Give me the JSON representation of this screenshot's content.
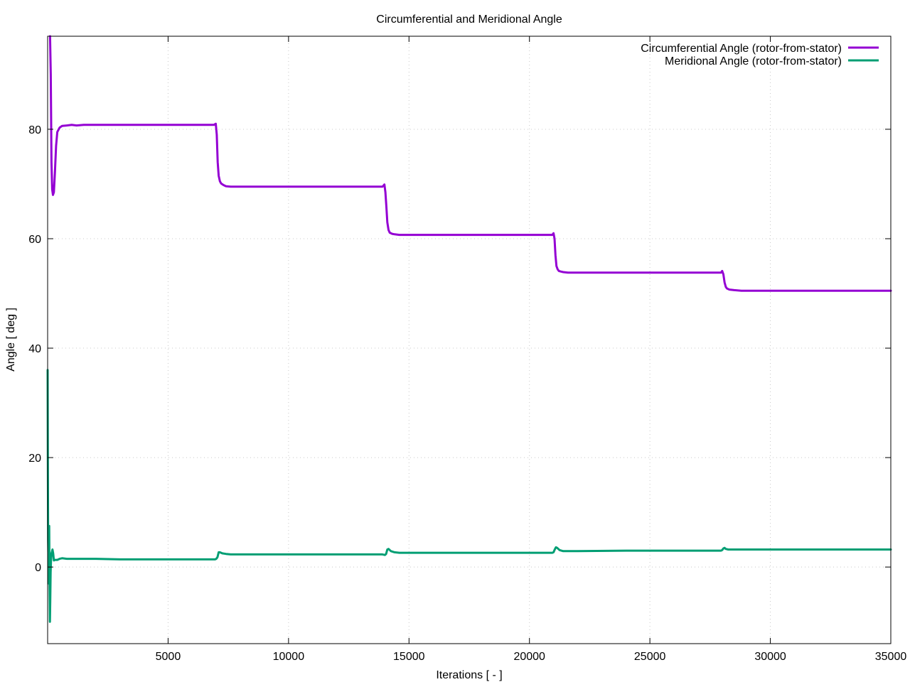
{
  "chart_data": {
    "type": "line",
    "title": "Circumferential and Meridional Angle",
    "xlabel": "Iterations [ - ]",
    "ylabel": "Angle [ deg ]",
    "xlim": [
      0,
      35000
    ],
    "ylim": [
      -14,
      97
    ],
    "xticks": [
      5000,
      10000,
      15000,
      20000,
      25000,
      30000,
      35000
    ],
    "yticks": [
      0,
      20,
      40,
      60,
      80
    ],
    "grid": true,
    "legend_position": "top-right",
    "series": [
      {
        "name": "Circumferential Angle (rotor-from-stator)",
        "color": "#9400d3",
        "x": [
          100,
          130,
          160,
          190,
          220,
          260,
          300,
          350,
          400,
          500,
          600,
          800,
          1000,
          1200,
          1500,
          2000,
          3000,
          4000,
          5000,
          6000,
          6900,
          6980,
          7020,
          7060,
          7100,
          7150,
          7200,
          7300,
          7400,
          7600,
          7800,
          8000,
          9000,
          10000,
          11000,
          12000,
          13000,
          13900,
          13980,
          14020,
          14060,
          14100,
          14150,
          14200,
          14300,
          14400,
          14600,
          14800,
          15000,
          16000,
          17000,
          18000,
          19000,
          20000,
          20950,
          21000,
          21040,
          21080,
          21120,
          21170,
          21220,
          21300,
          21400,
          21600,
          21800,
          22000,
          23000,
          24000,
          25000,
          26000,
          27000,
          27950,
          28000,
          28050,
          28100,
          28150,
          28200,
          28300,
          28500,
          28800,
          29000,
          30000,
          31000,
          32000,
          33000,
          34000,
          35000
        ],
        "y": [
          97,
          90,
          74,
          69,
          68,
          68.5,
          72,
          77,
          79.5,
          80.3,
          80.6,
          80.7,
          80.8,
          80.7,
          80.8,
          80.8,
          80.8,
          80.8,
          80.8,
          80.8,
          80.8,
          81,
          79,
          74,
          71.5,
          70.5,
          70.1,
          69.8,
          69.6,
          69.5,
          69.5,
          69.5,
          69.5,
          69.5,
          69.5,
          69.5,
          69.5,
          69.5,
          69.9,
          68.5,
          66,
          63,
          61.6,
          61.1,
          60.9,
          60.8,
          60.7,
          60.7,
          60.7,
          60.7,
          60.7,
          60.7,
          60.7,
          60.7,
          60.7,
          61,
          60,
          57,
          55,
          54.4,
          54.1,
          54.0,
          53.9,
          53.8,
          53.8,
          53.8,
          53.8,
          53.8,
          53.8,
          53.8,
          53.8,
          53.8,
          54.1,
          53.5,
          52.0,
          51.2,
          50.9,
          50.7,
          50.6,
          50.5,
          50.5,
          50.5,
          50.5,
          50.5,
          50.5,
          50.5,
          50.5
        ]
      },
      {
        "name": "Meridional Angle (rotor-from-stator)",
        "color": "#009e73",
        "x": [
          0,
          10,
          20,
          35,
          50,
          65,
          80,
          95,
          110,
          125,
          140,
          160,
          180,
          200,
          230,
          260,
          300,
          400,
          500,
          600,
          800,
          1000,
          2000,
          3000,
          4000,
          5000,
          6000,
          6950,
          7000,
          7050,
          7100,
          7150,
          7250,
          7400,
          7600,
          8000,
          9000,
          10000,
          12000,
          13900,
          14000,
          14050,
          14100,
          14150,
          14250,
          14400,
          14600,
          15000,
          16000,
          18000,
          20000,
          20950,
          21000,
          21050,
          21100,
          21150,
          21250,
          21400,
          21600,
          22000,
          24000,
          26000,
          27950,
          28000,
          28050,
          28100,
          28150,
          28250,
          28400,
          28600,
          29000,
          31000,
          33000,
          35000
        ],
        "y": [
          36,
          20,
          5,
          1,
          -3,
          7.5,
          -3,
          -10,
          -6,
          -1,
          1,
          2.5,
          2.8,
          3.2,
          2.5,
          1.2,
          1.3,
          1.3,
          1.5,
          1.6,
          1.5,
          1.5,
          1.5,
          1.4,
          1.4,
          1.4,
          1.4,
          1.4,
          1.5,
          1.8,
          2.7,
          2.7,
          2.5,
          2.4,
          2.3,
          2.3,
          2.3,
          2.3,
          2.3,
          2.3,
          2.2,
          2.4,
          3.2,
          3.3,
          2.9,
          2.7,
          2.6,
          2.6,
          2.6,
          2.6,
          2.6,
          2.6,
          2.7,
          3.2,
          3.6,
          3.5,
          3.1,
          2.9,
          2.9,
          2.9,
          3.0,
          3.0,
          3.0,
          3.1,
          3.4,
          3.5,
          3.3,
          3.2,
          3.2,
          3.2,
          3.2,
          3.2,
          3.2,
          3.2
        ]
      }
    ]
  }
}
